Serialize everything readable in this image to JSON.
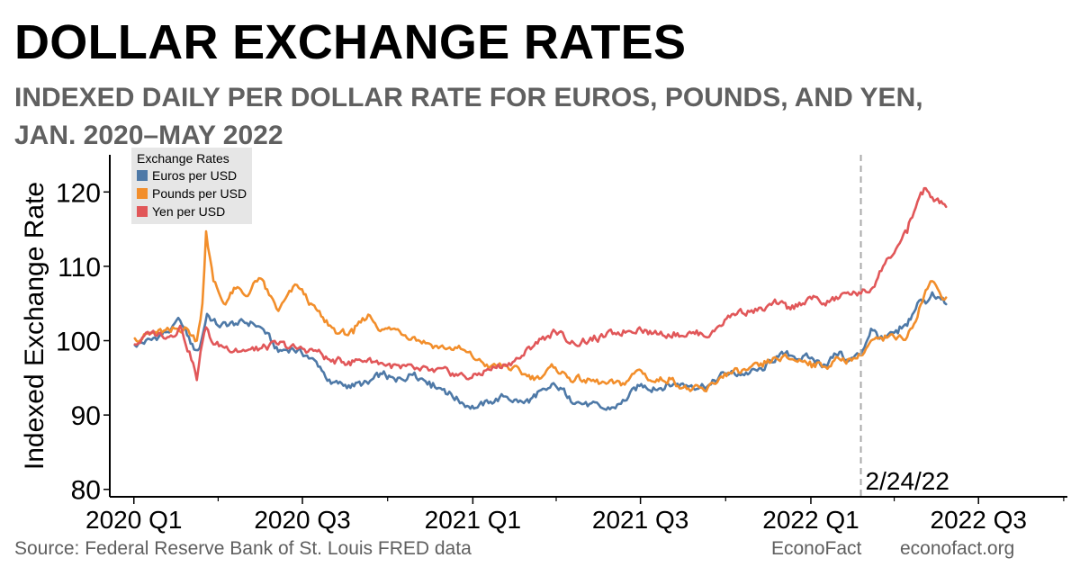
{
  "title": "DOLLAR EXCHANGE RATES",
  "subtitle_line1": "INDEXED DAILY PER DOLLAR RATE FOR EUROS, POUNDS, AND YEN,",
  "subtitle_line2": "JAN. 2020–MAY 2022",
  "source": "Source: Federal Reserve Bank of St. Louis FRED data",
  "brand": "EconoFact",
  "website": "econofact.org",
  "colors": {
    "euros": "#4e79a7",
    "pounds": "#f28e2b",
    "yen": "#e15759",
    "refline": "#aaaaaa"
  },
  "chart_data": {
    "type": "line",
    "ylabel": "Indexed Exchange Rate",
    "xlabel": "",
    "ylim": [
      79,
      125
    ],
    "yticks": [
      80,
      90,
      100,
      110,
      120
    ],
    "xticks": [
      {
        "label": "2020 Q1",
        "date": "2020-01-01"
      },
      {
        "label": "2020 Q3",
        "date": "2020-07-01"
      },
      {
        "label": "2021 Q1",
        "date": "2021-01-01"
      },
      {
        "label": "2021 Q3",
        "date": "2021-07-01"
      },
      {
        "label": "2022 Q1",
        "date": "2022-01-01"
      },
      {
        "label": "2022 Q3",
        "date": "2022-07-01"
      }
    ],
    "minor_xticks": [
      "2020-04-01",
      "2020-10-01",
      "2021-04-01",
      "2021-10-01",
      "2022-04-01",
      "2022-10-01"
    ],
    "xlim": [
      "2019-12-06",
      "2022-10-05"
    ],
    "grid": false,
    "legend_title": "Exchange Rates",
    "legend_position": "top-left",
    "annotation": {
      "date": "2022-02-24",
      "label": "2/24/22"
    },
    "series": [
      {
        "name": "Euros per USD",
        "points": [
          [
            "2020-01-02",
            99.4
          ],
          [
            "2020-01-20",
            100.1
          ],
          [
            "2020-02-10",
            101.5
          ],
          [
            "2020-02-20",
            102.7
          ],
          [
            "2020-03-06",
            98.8
          ],
          [
            "2020-03-12",
            99.0
          ],
          [
            "2020-03-20",
            103.6
          ],
          [
            "2020-04-01",
            102.0
          ],
          [
            "2020-04-20",
            102.3
          ],
          [
            "2020-05-08",
            102.4
          ],
          [
            "2020-05-20",
            101.5
          ],
          [
            "2020-06-05",
            98.5
          ],
          [
            "2020-06-20",
            99.0
          ],
          [
            "2020-07-06",
            98.0
          ],
          [
            "2020-07-20",
            96.5
          ],
          [
            "2020-08-01",
            94.2
          ],
          [
            "2020-08-20",
            94.0
          ],
          [
            "2020-09-10",
            94.2
          ],
          [
            "2020-09-25",
            95.5
          ],
          [
            "2020-10-10",
            94.5
          ],
          [
            "2020-10-30",
            95.7
          ],
          [
            "2020-11-15",
            94.5
          ],
          [
            "2020-12-01",
            93.5
          ],
          [
            "2020-12-20",
            91.7
          ],
          [
            "2021-01-06",
            91.0
          ],
          [
            "2021-01-20",
            91.8
          ],
          [
            "2021-02-05",
            92.5
          ],
          [
            "2021-02-25",
            91.6
          ],
          [
            "2021-03-10",
            92.4
          ],
          [
            "2021-03-31",
            94.0
          ],
          [
            "2021-04-15",
            92.5
          ],
          [
            "2021-05-01",
            91.5
          ],
          [
            "2021-05-25",
            90.7
          ],
          [
            "2021-06-10",
            91.5
          ],
          [
            "2021-06-30",
            93.9
          ],
          [
            "2021-07-15",
            93.7
          ],
          [
            "2021-08-10",
            94.2
          ],
          [
            "2021-08-25",
            94.0
          ],
          [
            "2021-09-15",
            94.1
          ],
          [
            "2021-09-30",
            95.6
          ],
          [
            "2021-10-15",
            95.5
          ],
          [
            "2021-11-10",
            96.0
          ],
          [
            "2021-11-25",
            97.9
          ],
          [
            "2021-12-10",
            98.0
          ],
          [
            "2021-12-31",
            97.6
          ],
          [
            "2022-01-15",
            96.8
          ],
          [
            "2022-02-01",
            98.5
          ],
          [
            "2022-02-10",
            97.2
          ],
          [
            "2022-02-24",
            98.2
          ],
          [
            "2022-03-07",
            101.6
          ],
          [
            "2022-03-20",
            100.1
          ],
          [
            "2022-04-05",
            101.0
          ],
          [
            "2022-04-15",
            102.0
          ],
          [
            "2022-04-28",
            105.4
          ],
          [
            "2022-05-05",
            105.0
          ],
          [
            "2022-05-12",
            106.5
          ],
          [
            "2022-05-20",
            105.8
          ],
          [
            "2022-05-27",
            104.9
          ]
        ]
      },
      {
        "name": "Pounds per USD",
        "points": [
          [
            "2020-01-02",
            100.3
          ],
          [
            "2020-01-20",
            101.0
          ],
          [
            "2020-02-10",
            101.2
          ],
          [
            "2020-02-25",
            101.8
          ],
          [
            "2020-03-09",
            100.0
          ],
          [
            "2020-03-15",
            105.0
          ],
          [
            "2020-03-19",
            114.7
          ],
          [
            "2020-03-27",
            108.0
          ],
          [
            "2020-04-07",
            105.0
          ],
          [
            "2020-04-20",
            107.0
          ],
          [
            "2020-05-01",
            106.0
          ],
          [
            "2020-05-15",
            108.4
          ],
          [
            "2020-05-22",
            107.0
          ],
          [
            "2020-06-05",
            104.0
          ],
          [
            "2020-06-25",
            107.5
          ],
          [
            "2020-07-10",
            105.0
          ],
          [
            "2020-07-25",
            102.5
          ],
          [
            "2020-08-10",
            101.0
          ],
          [
            "2020-08-25",
            101.0
          ],
          [
            "2020-09-10",
            103.5
          ],
          [
            "2020-09-25",
            101.5
          ],
          [
            "2020-10-10",
            101.5
          ],
          [
            "2020-10-30",
            100.5
          ],
          [
            "2020-11-15",
            99.6
          ],
          [
            "2020-12-01",
            99.0
          ],
          [
            "2020-12-15",
            99.0
          ],
          [
            "2021-01-06",
            97.4
          ],
          [
            "2021-01-20",
            96.5
          ],
          [
            "2021-02-05",
            96.6
          ],
          [
            "2021-02-25",
            95.5
          ],
          [
            "2021-03-10",
            95.0
          ],
          [
            "2021-03-31",
            96.4
          ],
          [
            "2021-04-15",
            95.0
          ],
          [
            "2021-05-01",
            94.7
          ],
          [
            "2021-05-25",
            94.2
          ],
          [
            "2021-06-10",
            94.0
          ],
          [
            "2021-06-30",
            96.1
          ],
          [
            "2021-07-15",
            94.5
          ],
          [
            "2021-08-01",
            95.0
          ],
          [
            "2021-08-20",
            93.5
          ],
          [
            "2021-09-10",
            93.2
          ],
          [
            "2021-09-30",
            95.6
          ],
          [
            "2021-10-15",
            95.7
          ],
          [
            "2021-11-10",
            96.5
          ],
          [
            "2021-11-25",
            97.6
          ],
          [
            "2021-12-10",
            97.5
          ],
          [
            "2021-12-31",
            97.2
          ],
          [
            "2022-01-15",
            96.5
          ],
          [
            "2022-02-01",
            97.5
          ],
          [
            "2022-02-10",
            97.5
          ],
          [
            "2022-02-24",
            98.0
          ],
          [
            "2022-03-07",
            100.0
          ],
          [
            "2022-03-20",
            100.0
          ],
          [
            "2022-04-05",
            100.5
          ],
          [
            "2022-04-15",
            100.5
          ],
          [
            "2022-04-28",
            104.4
          ],
          [
            "2022-05-05",
            106.8
          ],
          [
            "2022-05-12",
            108.0
          ],
          [
            "2022-05-20",
            106.5
          ],
          [
            "2022-05-27",
            105.8
          ]
        ]
      },
      {
        "name": "Yen per USD",
        "points": [
          [
            "2020-01-02",
            99.5
          ],
          [
            "2020-01-20",
            101.1
          ],
          [
            "2020-02-10",
            100.7
          ],
          [
            "2020-02-20",
            102.0
          ],
          [
            "2020-03-05",
            97.0
          ],
          [
            "2020-03-09",
            94.7
          ],
          [
            "2020-03-13",
            98.5
          ],
          [
            "2020-03-19",
            101.8
          ],
          [
            "2020-03-27",
            99.5
          ],
          [
            "2020-04-20",
            98.9
          ],
          [
            "2020-05-10",
            98.7
          ],
          [
            "2020-06-05",
            99.5
          ],
          [
            "2020-06-25",
            98.9
          ],
          [
            "2020-07-15",
            98.7
          ],
          [
            "2020-08-01",
            97.2
          ],
          [
            "2020-08-20",
            97.2
          ],
          [
            "2020-09-10",
            97.5
          ],
          [
            "2020-09-25",
            97.0
          ],
          [
            "2020-10-15",
            96.3
          ],
          [
            "2020-11-05",
            96.0
          ],
          [
            "2020-11-20",
            95.8
          ],
          [
            "2020-12-10",
            95.6
          ],
          [
            "2020-12-31",
            95.0
          ],
          [
            "2021-01-15",
            96.0
          ],
          [
            "2021-02-05",
            96.8
          ],
          [
            "2021-02-25",
            98.0
          ],
          [
            "2021-03-10",
            99.8
          ],
          [
            "2021-03-31",
            101.2
          ],
          [
            "2021-04-20",
            99.7
          ],
          [
            "2021-05-10",
            100.0
          ],
          [
            "2021-06-01",
            100.9
          ],
          [
            "2021-06-30",
            101.8
          ],
          [
            "2021-07-15",
            101.0
          ],
          [
            "2021-08-10",
            101.0
          ],
          [
            "2021-08-25",
            101.0
          ],
          [
            "2021-09-15",
            100.9
          ],
          [
            "2021-09-30",
            102.8
          ],
          [
            "2021-10-15",
            104.0
          ],
          [
            "2021-11-10",
            104.1
          ],
          [
            "2021-11-25",
            105.0
          ],
          [
            "2021-12-10",
            104.2
          ],
          [
            "2021-12-31",
            105.9
          ],
          [
            "2022-01-15",
            105.0
          ],
          [
            "2022-02-01",
            105.8
          ],
          [
            "2022-02-10",
            106.5
          ],
          [
            "2022-02-24",
            106.3
          ],
          [
            "2022-03-07",
            106.9
          ],
          [
            "2022-03-20",
            110.0
          ],
          [
            "2022-04-05",
            112.8
          ],
          [
            "2022-04-15",
            114.5
          ],
          [
            "2022-04-28",
            119.3
          ],
          [
            "2022-05-05",
            120.5
          ],
          [
            "2022-05-12",
            119.3
          ],
          [
            "2022-05-20",
            118.5
          ],
          [
            "2022-05-27",
            118.0
          ]
        ]
      }
    ]
  }
}
